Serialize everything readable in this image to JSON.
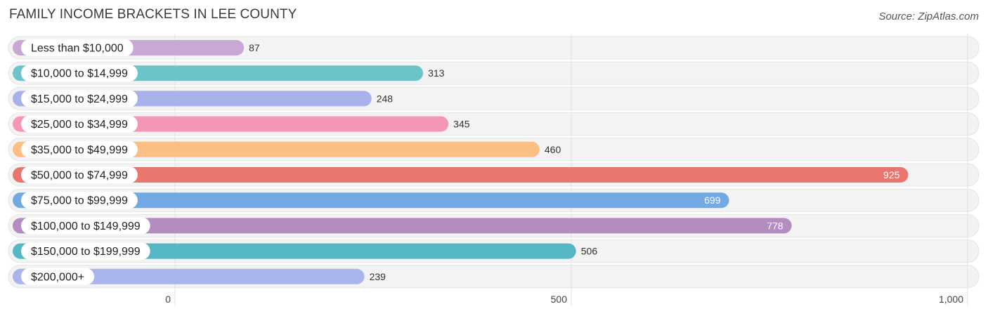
{
  "header": {
    "title": "FAMILY INCOME BRACKETS IN LEE COUNTY",
    "source": "Source: ZipAtlas.com"
  },
  "chart_data": {
    "type": "bar",
    "orientation": "horizontal",
    "title": "FAMILY INCOME BRACKETS IN LEE COUNTY",
    "categories": [
      "Less than $10,000",
      "$10,000 to $14,999",
      "$15,000 to $24,999",
      "$25,000 to $34,999",
      "$35,000 to $49,999",
      "$50,000 to $74,999",
      "$75,000 to $99,999",
      "$100,000 to $149,999",
      "$150,000 to $199,999",
      "$200,000+"
    ],
    "values": [
      87,
      313,
      248,
      345,
      460,
      925,
      699,
      778,
      506,
      239
    ],
    "value_labels": [
      "87",
      "313",
      "248",
      "345",
      "460",
      "925",
      "699",
      "778",
      "506",
      "239"
    ],
    "colors": [
      "#c9a8d4",
      "#6cc4cb",
      "#a9b1ea",
      "#f497b7",
      "#fbbf83",
      "#e8766f",
      "#72a9e3",
      "#b48cc2",
      "#55b7c6",
      "#aab5ec"
    ],
    "xlim": [
      0,
      1000
    ],
    "x_ticks": [
      0,
      500,
      1000
    ],
    "x_tick_labels": [
      "0",
      "500",
      "1,000"
    ],
    "grid": true,
    "xlabel": "",
    "ylabel": ""
  }
}
